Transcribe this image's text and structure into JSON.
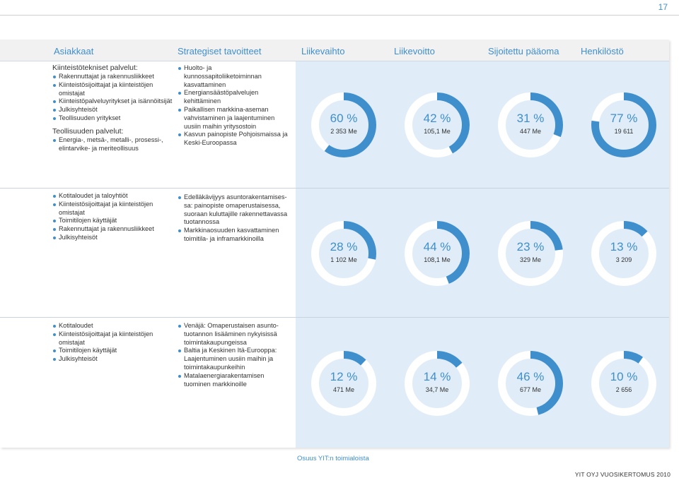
{
  "page_number": "17",
  "headers": [
    "Asiakkaat",
    "Strategiset tavoitteet",
    "Liikevaihto",
    "Liikevoitto",
    "Sijoitettu pääoma",
    "Henkilöstö"
  ],
  "accent_color": "#3f8fcd",
  "rows": [
    {
      "customers": {
        "groups": [
          {
            "title": "Kiinteistötekniset palvelut:",
            "items": [
              "Rakennuttajat ja rakennusliikkeet",
              "Kiinteistösijoittajat ja kiinteistöjen omistajat",
              "Kiinteistöpalveluyritykset ja isännöitsijät",
              "Julkisyhteisöt",
              "Teollisuuden yritykset"
            ]
          },
          {
            "title": "Teollisuuden palvelut:",
            "items": [
              "Energia-, metsä-, metalli-, prosessi-, elintarvike- ja meriteollisuus"
            ]
          }
        ]
      },
      "strategy": [
        "Huolto- ja kunnossapitoliiketoiminnan kasvattaminen",
        "Energiansäästöpalvelujen kehittäminen",
        "Paikallisen markkina-aseman vahvistaminen ja laajentuminen uusiin maihin yritysostoin",
        "Kasvun painopiste Pohjoismaissa ja Keski-Euroopassa"
      ],
      "metrics": [
        {
          "percent": 60,
          "label": "60 %",
          "value": "2 353 Me"
        },
        {
          "percent": 42,
          "label": "42 %",
          "value": "105,1 Me"
        },
        {
          "percent": 31,
          "label": "31 %",
          "value": "447 Me"
        },
        {
          "percent": 77,
          "label": "77 %",
          "value": "19 611"
        }
      ]
    },
    {
      "customers": {
        "groups": [
          {
            "title": "",
            "items": [
              "Kotitaloudet ja taloyhtiöt",
              "Kiinteistösijoittajat ja kiinteistöjen omistajat",
              "Toimitilojen käyttäjät",
              "Rakennuttajat ja rakennusliikkeet",
              "Julkisyhteisöt"
            ]
          }
        ]
      },
      "strategy": [
        "Edelläkävijyys asuntorakentamises-sa: painopiste omaperustaisessa, suoraan kuluttajille rakennettavassa tuotannossa",
        "Markkinaosuuden kasvattaminen toimitila- ja inframarkkinoilla"
      ],
      "metrics": [
        {
          "percent": 28,
          "label": "28 %",
          "value": "1 102 Me"
        },
        {
          "percent": 44,
          "label": "44 %",
          "value": "108,1 Me"
        },
        {
          "percent": 23,
          "label": "23 %",
          "value": "329 Me"
        },
        {
          "percent": 13,
          "label": "13 %",
          "value": "3 209"
        }
      ]
    },
    {
      "customers": {
        "groups": [
          {
            "title": "",
            "items": [
              "Kotitaloudet",
              "Kiinteistösijoittajat ja kiinteistöjen omistajat",
              "Toimitilojen käyttäjät",
              "Julkisyhteisöt"
            ]
          }
        ]
      },
      "strategy": [
        "Venäjä: Omaperustaisen asunto-tuotannon lisääminen nykyisissä toimintakaupungeissa",
        "Baltia ja Keskinen Itä-Eurooppa: Laajentuminen uusiin maihin ja toimintakaupunkeihin",
        "Matalaenergiarakentamisen tuominen markkinoille"
      ],
      "metrics": [
        {
          "percent": 12,
          "label": "12 %",
          "value": "471 Me"
        },
        {
          "percent": 14,
          "label": "14 %",
          "value": "34,7 Me"
        },
        {
          "percent": 46,
          "label": "46 %",
          "value": "677 Me"
        },
        {
          "percent": 10,
          "label": "10 %",
          "value": "2 656"
        }
      ]
    }
  ],
  "footer_link": "Osuus YIT:n toimialoista",
  "footer_right": "YIT OYJ VUOSIKERTOMUS 2010"
}
